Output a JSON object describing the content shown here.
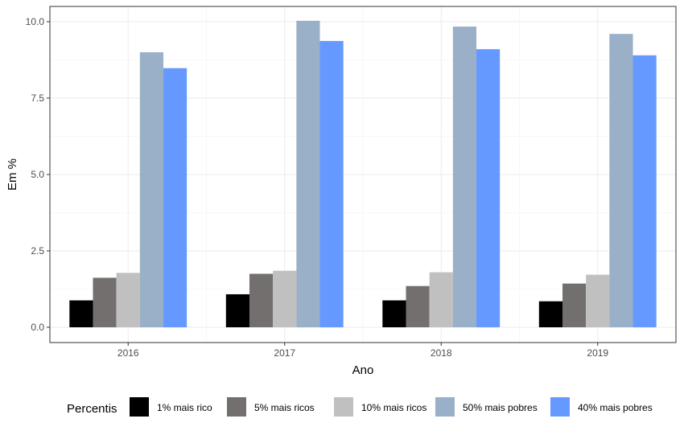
{
  "chart_data": {
    "type": "bar",
    "title": "",
    "xlabel": "Ano",
    "ylabel": "Em %",
    "categories": [
      "2016",
      "2017",
      "2018",
      "2019"
    ],
    "ylim": [
      -0.5,
      10.5
    ],
    "yticks": [
      0.0,
      2.5,
      5.0,
      7.5,
      10.0
    ],
    "ytick_labels": [
      "0.0",
      "2.5",
      "5.0",
      "7.5",
      "10.0"
    ],
    "grid": true,
    "legend": {
      "title": "Percentis",
      "placement": "bottom"
    },
    "series": [
      {
        "name": "1% mais rico",
        "color": "#000000",
        "values": [
          0.88,
          1.08,
          0.88,
          0.85
        ]
      },
      {
        "name": "5% mais ricos",
        "color": "#736f6f",
        "values": [
          1.62,
          1.75,
          1.35,
          1.43
        ]
      },
      {
        "name": "10% mais ricos",
        "color": "#c0c0c0",
        "values": [
          1.78,
          1.85,
          1.8,
          1.72
        ]
      },
      {
        "name": "50% mais pobres",
        "color": "#9aafc8",
        "values": [
          9.0,
          10.03,
          9.84,
          9.6
        ]
      },
      {
        "name": "40% mais pobres",
        "color": "#6699ff",
        "values": [
          8.48,
          9.37,
          9.1,
          8.9
        ]
      }
    ]
  }
}
